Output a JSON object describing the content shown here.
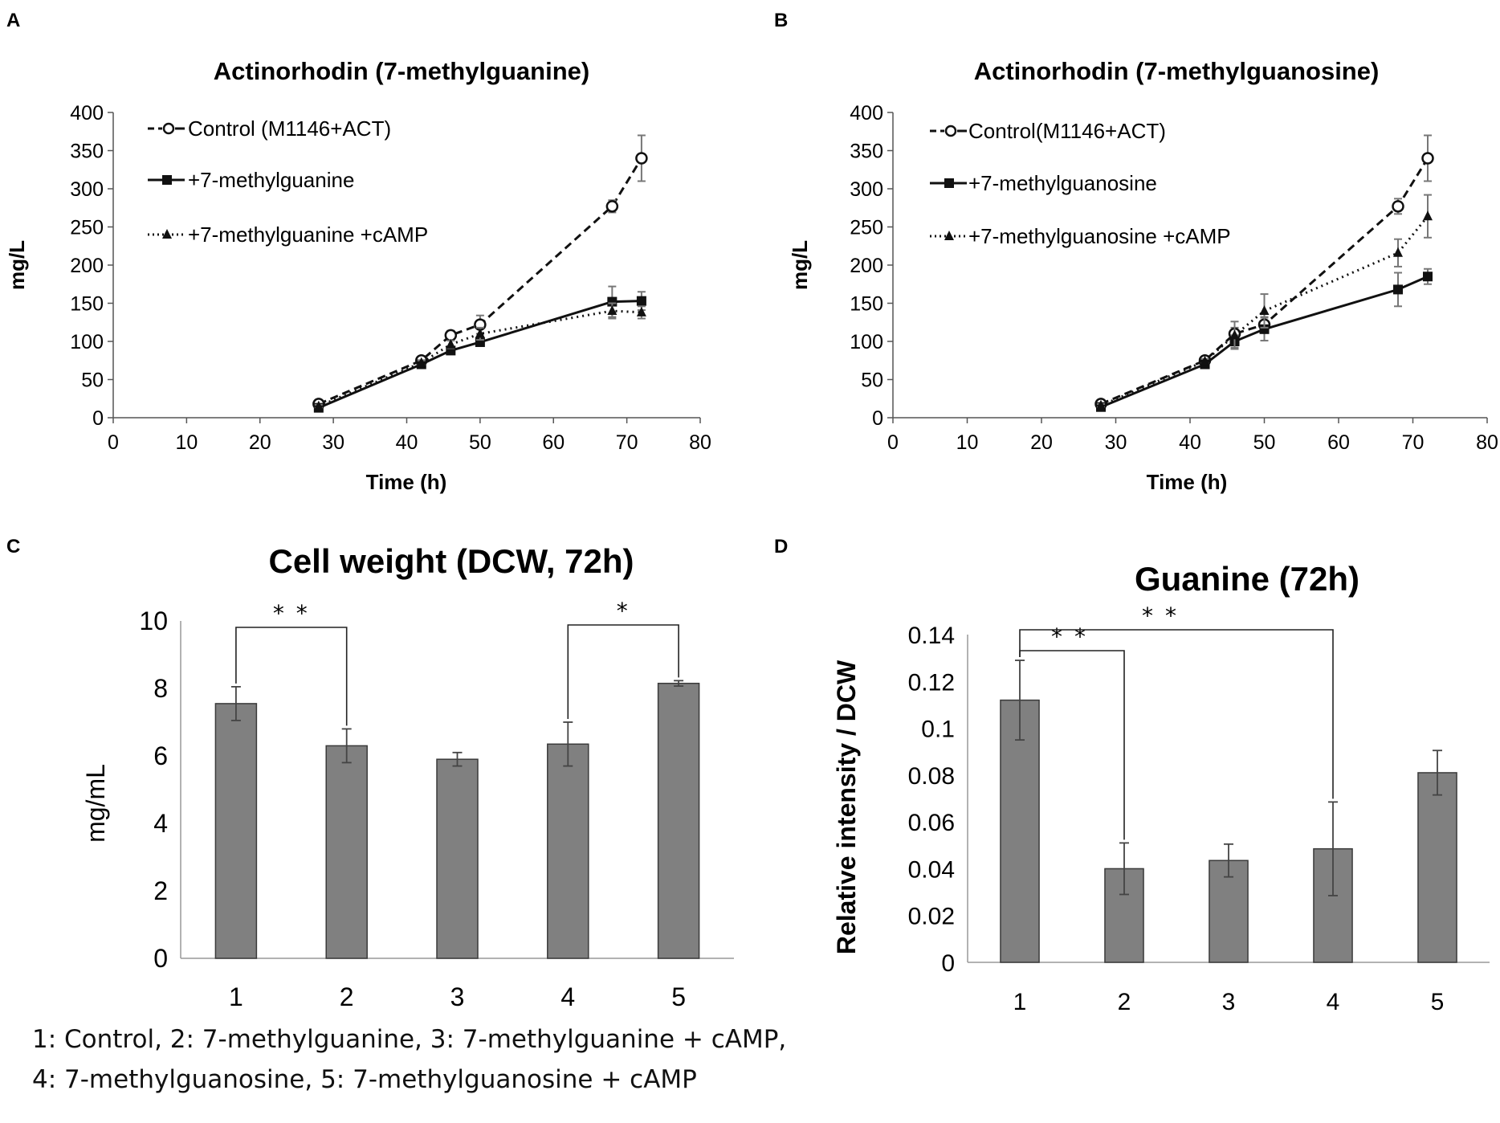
{
  "figure": {
    "caption_line1": "1: Control, 2: 7-methylguanine,  3: 7-methylguanine + cAMP,",
    "caption_line2": "4: 7-methylguanosine,  5: 7-methylguanosine + cAMP"
  },
  "colors": {
    "bar_fill": "#808080",
    "bar_stroke": "#3a3a3a",
    "line": "#111111",
    "error": "#777777",
    "axis": "#555555"
  },
  "chart_data": [
    {
      "panel": "A",
      "type": "line",
      "title": "Actinorhodin (7-methylguanine)",
      "xlabel": "Time (h)",
      "ylabel": "mg/L",
      "xlim": [
        0,
        80
      ],
      "ylim": [
        0,
        400
      ],
      "xticks": [
        "0",
        "10",
        "20",
        "30",
        "40",
        "50",
        "60",
        "70",
        "80"
      ],
      "yticks": [
        "0",
        "50",
        "100",
        "150",
        "200",
        "250",
        "300",
        "350",
        "400"
      ],
      "x": [
        28,
        42,
        46,
        50,
        68,
        72
      ],
      "series": [
        {
          "name": "Control (M1146+ACT)",
          "style": "dashed",
          "marker": "open-circle",
          "values": [
            18,
            75,
            108,
            122,
            277,
            340
          ],
          "errors": [
            3,
            4,
            6,
            12,
            8,
            30
          ]
        },
        {
          "name": "+7-methylguanine",
          "style": "solid",
          "marker": "square",
          "values": [
            13,
            70,
            88,
            99,
            152,
            153
          ],
          "errors": [
            2,
            3,
            4,
            5,
            20,
            12
          ]
        },
        {
          "name": "+7-methylguanine +cAMP",
          "style": "dotted",
          "marker": "triangle",
          "values": [
            15,
            72,
            96,
            110,
            140,
            138
          ],
          "errors": [
            2,
            3,
            5,
            8,
            10,
            8
          ]
        }
      ]
    },
    {
      "panel": "B",
      "type": "line",
      "title": "Actinorhodin (7-methylguanosine)",
      "xlabel": "Time (h)",
      "ylabel": "mg/L",
      "xlim": [
        0,
        80
      ],
      "ylim": [
        0,
        400
      ],
      "xticks": [
        "0",
        "10",
        "20",
        "30",
        "40",
        "50",
        "60",
        "70",
        "80"
      ],
      "yticks": [
        "0",
        "50",
        "100",
        "150",
        "200",
        "250",
        "300",
        "350",
        "400"
      ],
      "x": [
        28,
        42,
        46,
        50,
        68,
        72
      ],
      "series": [
        {
          "name": "Control(M1146+ACT)",
          "style": "dashed",
          "marker": "open-circle",
          "values": [
            18,
            75,
            110,
            122,
            277,
            340
          ],
          "errors": [
            3,
            4,
            8,
            10,
            10,
            30
          ]
        },
        {
          "name": "+7-methylguanosine",
          "style": "solid",
          "marker": "square",
          "values": [
            14,
            70,
            100,
            116,
            168,
            185
          ],
          "errors": [
            2,
            3,
            8,
            15,
            22,
            10
          ]
        },
        {
          "name": "+7-methylguanosine +cAMP",
          "style": "dotted",
          "marker": "triangle",
          "values": [
            16,
            74,
            108,
            140,
            216,
            264
          ],
          "errors": [
            2,
            3,
            18,
            22,
            18,
            28
          ]
        }
      ]
    },
    {
      "panel": "C",
      "type": "bar",
      "title": "Cell weight (DCW, 72h)",
      "xlabel": "",
      "ylabel": "mg/mL",
      "ylim": [
        0,
        10
      ],
      "yticks": [
        "0",
        "2",
        "4",
        "6",
        "8",
        "10"
      ],
      "categories": [
        "1",
        "2",
        "3",
        "4",
        "5"
      ],
      "values": [
        7.55,
        6.3,
        5.9,
        6.35,
        8.15
      ],
      "errors": [
        0.5,
        0.5,
        0.2,
        0.65,
        0.08
      ],
      "significance": [
        {
          "from": 1,
          "to": 2,
          "label": "* *"
        },
        {
          "from": 4,
          "to": 5,
          "label": "*"
        }
      ]
    },
    {
      "panel": "D",
      "type": "bar",
      "title": "Guanine (72h)",
      "xlabel": "",
      "ylabel": "Relative intensity / DCW",
      "ylim": [
        0,
        0.14
      ],
      "yticks": [
        "0",
        "0.02",
        "0.04",
        "0.06",
        "0.08",
        "0.1",
        "0.12",
        "0.14"
      ],
      "categories": [
        "1",
        "2",
        "3",
        "4",
        "5"
      ],
      "values": [
        0.112,
        0.04,
        0.0435,
        0.0485,
        0.081
      ],
      "errors": [
        0.017,
        0.011,
        0.007,
        0.02,
        0.0095
      ],
      "significance": [
        {
          "from": 1,
          "to": 2,
          "label": "* *"
        },
        {
          "from": 1,
          "to": 4,
          "label": "* *"
        }
      ]
    }
  ]
}
